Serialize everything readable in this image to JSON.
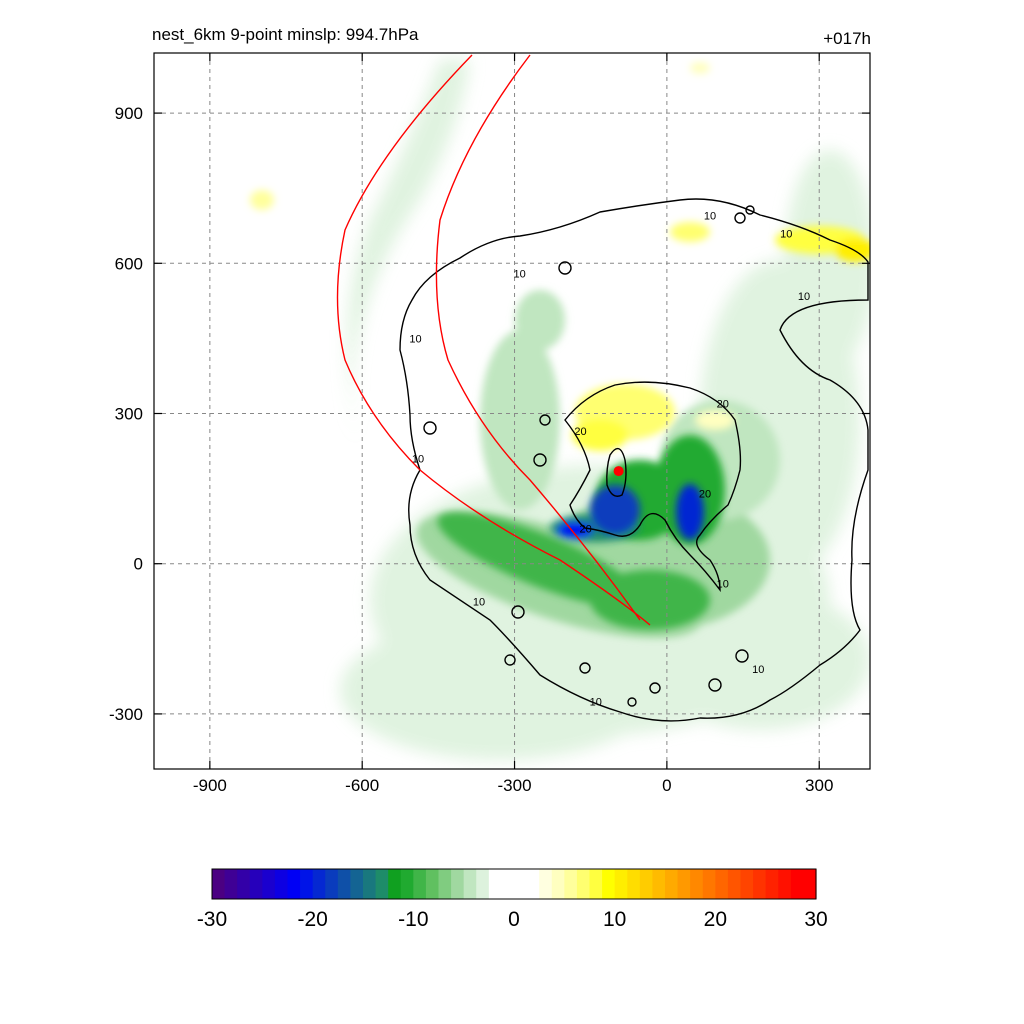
{
  "header": {
    "left_title": "nest_6km  9-point minslp: 994.7hPa",
    "right_title": "+017h"
  },
  "chart_data": {
    "type": "heatmap",
    "xlim": [
      -1010,
      400
    ],
    "ylim": [
      -410,
      1020
    ],
    "x_ticks": [
      -900,
      -600,
      -300,
      0,
      300
    ],
    "y_ticks": [
      -300,
      0,
      300,
      600,
      900
    ],
    "grid": true,
    "colorbar": {
      "min": -30,
      "max": 30,
      "ticks": [
        -30,
        -20,
        -10,
        0,
        10,
        20,
        30
      ],
      "colors": [
        "#4b0082",
        "#3f0095",
        "#3300a8",
        "#2600bb",
        "#1a00cf",
        "#0d00e2",
        "#0000f5",
        "#0014e8",
        "#0528d2",
        "#0a3cbd",
        "#0f50a8",
        "#146493",
        "#19787e",
        "#1e8c69",
        "#10a020",
        "#20aa30",
        "#40b548",
        "#60c060",
        "#80cc80",
        "#a0d8a0",
        "#c0e6c0",
        "#ddf2dd",
        "#ffffff",
        "#ffffff",
        "#ffffff",
        "#ffffff",
        "#ffffe0",
        "#ffffc0",
        "#ffff9c",
        "#ffff70",
        "#ffff40",
        "#ffff00",
        "#ffee00",
        "#ffdd00",
        "#ffcc00",
        "#ffbb00",
        "#ffaa00",
        "#ff9900",
        "#ff8800",
        "#ff7700",
        "#ff6600",
        "#ff5500",
        "#ff4400",
        "#ff3300",
        "#ff2200",
        "#ff1100",
        "#ff0000",
        "#ff0000"
      ]
    },
    "contour_labels": [
      {
        "text": "10",
        "x": -290,
        "y": 580
      },
      {
        "text": "10",
        "x": -495,
        "y": 450
      },
      {
        "text": "10",
        "x": -490,
        "y": 210
      },
      {
        "text": "10",
        "x": -370,
        "y": -75
      },
      {
        "text": "10",
        "x": -140,
        "y": -275
      },
      {
        "text": "10",
        "x": 180,
        "y": -210
      },
      {
        "text": "10",
        "x": 110,
        "y": -40
      },
      {
        "text": "10",
        "x": 85,
        "y": 695
      },
      {
        "text": "10",
        "x": 235,
        "y": 660
      },
      {
        "text": "10",
        "x": 270,
        "y": 535
      },
      {
        "text": "20",
        "x": -170,
        "y": 265
      },
      {
        "text": "20",
        "x": 110,
        "y": 320
      },
      {
        "text": "20",
        "x": 75,
        "y": 140
      },
      {
        "text": "20",
        "x": -160,
        "y": 70
      }
    ],
    "storm_center": {
      "x": -95,
      "y": 185,
      "color": "#ff0000"
    },
    "track_color": "#ff0000"
  }
}
